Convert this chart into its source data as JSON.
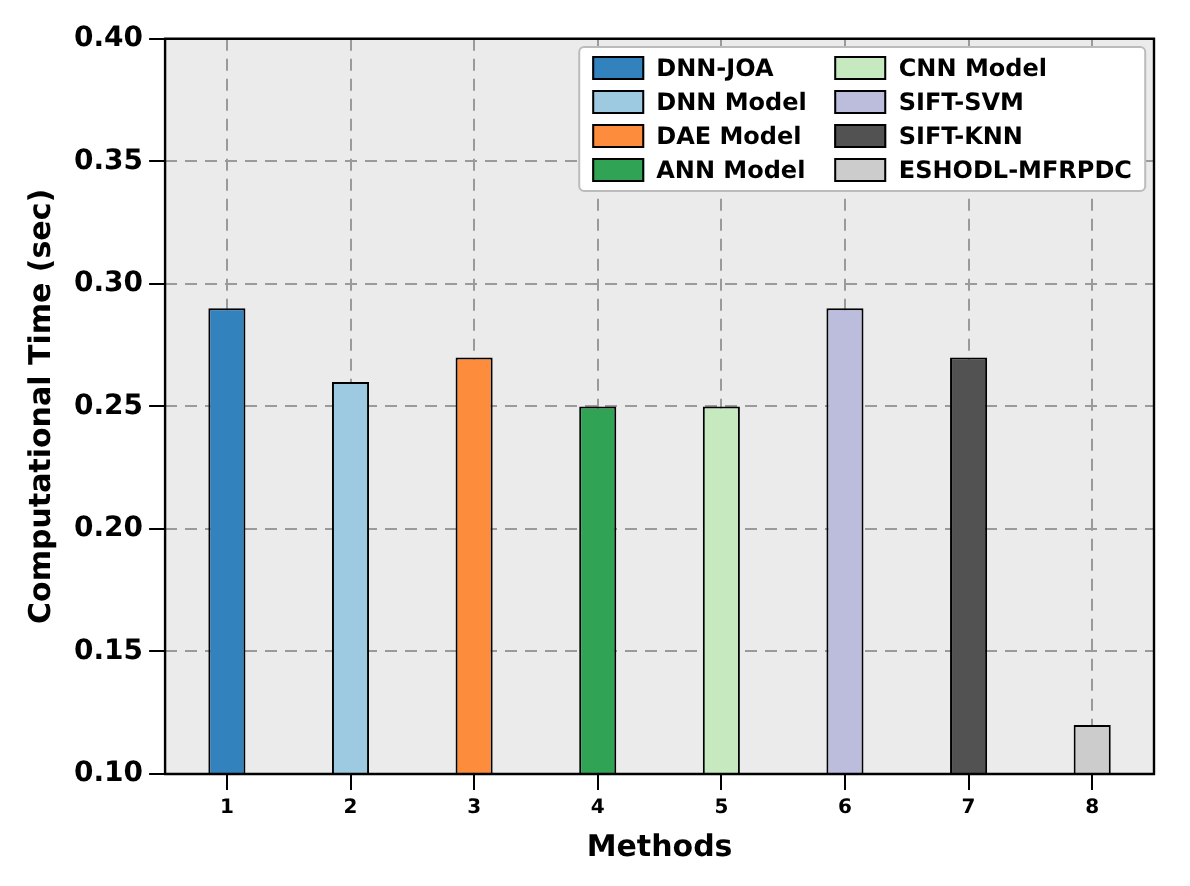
{
  "chart_data": {
    "type": "bar",
    "xlabel": "Methods",
    "ylabel": "Computational Time (sec)",
    "categories": [
      "1",
      "2",
      "3",
      "4",
      "5",
      "6",
      "7",
      "8"
    ],
    "series": [
      {
        "name": "DNN-JOA",
        "color": "#3182bd",
        "values": [
          0.29,
          null,
          null,
          null,
          null,
          null,
          null,
          null
        ]
      },
      {
        "name": "DNN Model",
        "color": "#9ecae1",
        "values": [
          null,
          0.26,
          null,
          null,
          null,
          null,
          null,
          null
        ]
      },
      {
        "name": "DAE Model",
        "color": "#fd8d3c",
        "values": [
          null,
          null,
          0.27,
          null,
          null,
          null,
          null,
          null
        ]
      },
      {
        "name": "ANN Model",
        "color": "#31a354",
        "values": [
          null,
          null,
          null,
          0.25,
          null,
          null,
          null,
          null
        ]
      },
      {
        "name": "CNN Model",
        "color": "#c7e9c0",
        "values": [
          null,
          null,
          null,
          null,
          0.25,
          null,
          null,
          null
        ]
      },
      {
        "name": "SIFT-SVM",
        "color": "#bcbddc",
        "values": [
          null,
          null,
          null,
          null,
          null,
          0.29,
          null,
          null
        ]
      },
      {
        "name": "SIFT-KNN",
        "color": "#525252",
        "values": [
          null,
          null,
          null,
          null,
          null,
          null,
          0.27,
          null
        ]
      },
      {
        "name": "ESHODL-MFRPDC",
        "color": "#cccccc",
        "values": [
          null,
          null,
          null,
          null,
          null,
          null,
          null,
          0.12
        ]
      }
    ],
    "ylim": [
      0.1,
      0.4
    ],
    "yticks": [
      {
        "value": 0.1,
        "label": "0.10"
      },
      {
        "value": 0.15,
        "label": "0.15"
      },
      {
        "value": 0.2,
        "label": "0.20"
      },
      {
        "value": 0.25,
        "label": "0.25"
      },
      {
        "value": 0.3,
        "label": "0.30"
      },
      {
        "value": 0.35,
        "label": "0.35"
      },
      {
        "value": 0.4,
        "label": "0.40"
      }
    ],
    "grid": true,
    "legend": "top right"
  }
}
